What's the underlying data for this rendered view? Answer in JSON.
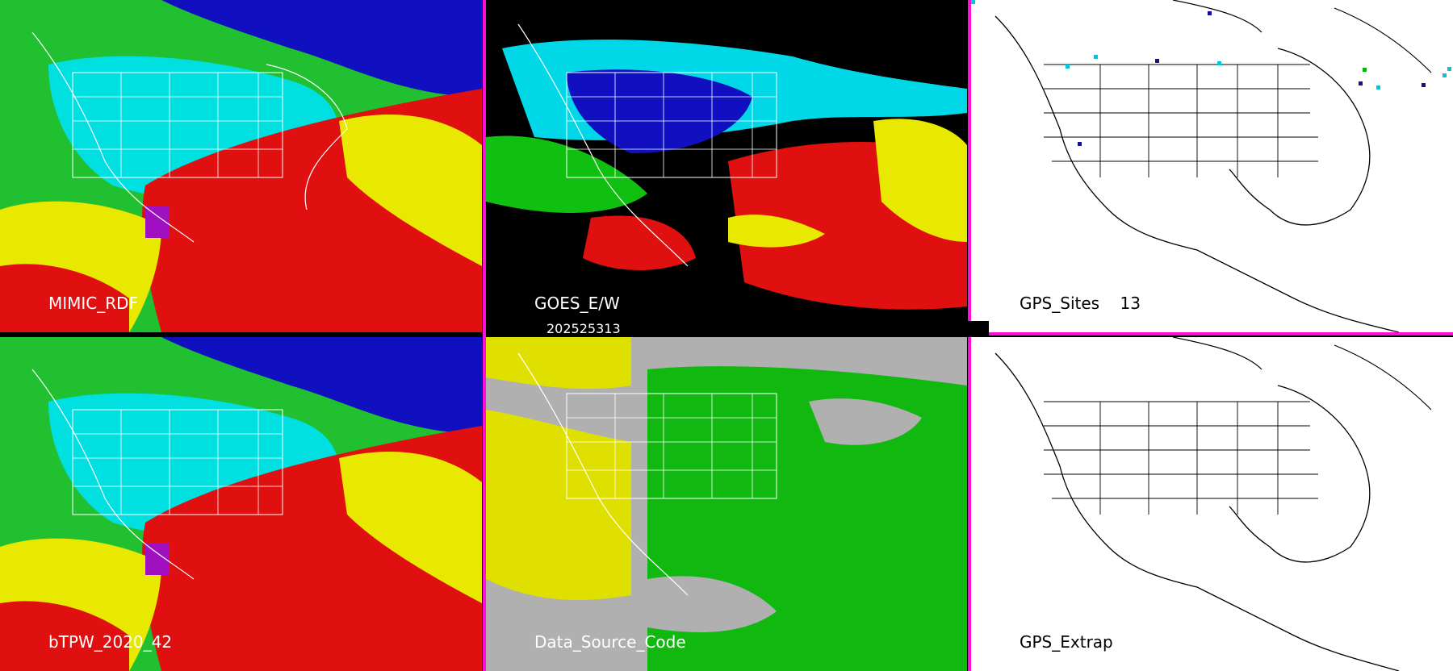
{
  "panels": {
    "mimic_rdf": {
      "label": "MIMIC_RDF"
    },
    "goes_ew": {
      "label": "GOES_E/W"
    },
    "gps_sites": {
      "label": "GPS_Sites",
      "count": "13"
    },
    "btpw": {
      "label": "bTPW_2020_42"
    },
    "data_source_code": {
      "label": "Data_Source_Code"
    },
    "gps_extrap": {
      "label": "GPS_Extrap"
    }
  },
  "timestamp": "202525313",
  "colors": {
    "separator": "#ff10d8",
    "tpw_scale": [
      "#1010c0",
      "#00e8e8",
      "#10c010",
      "#e8e800",
      "#e01010",
      "#a010c0"
    ],
    "source_code": [
      "#b0b0b0",
      "#e0e000",
      "#10b810",
      "#000000"
    ]
  },
  "icons": [
    "map-outline-north-america"
  ]
}
